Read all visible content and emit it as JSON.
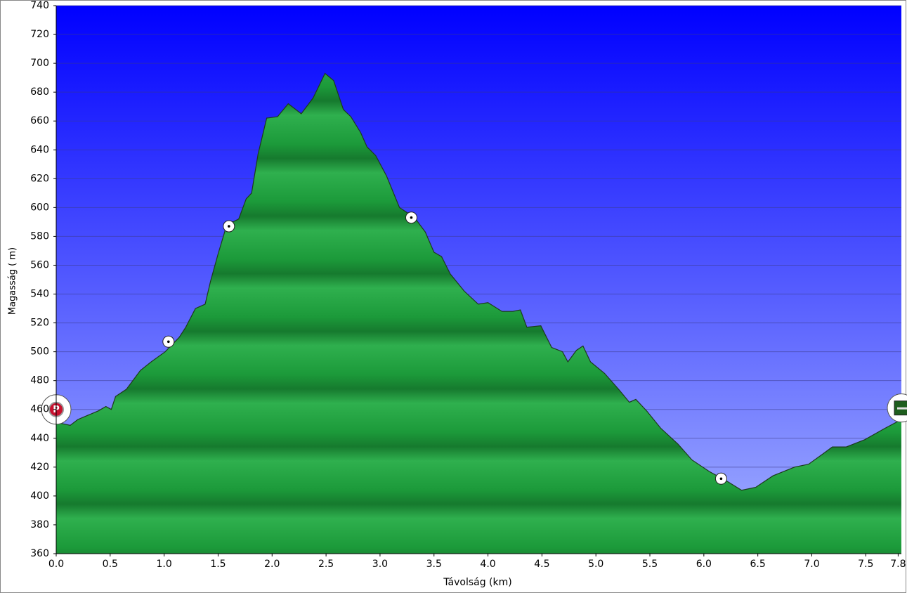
{
  "chart_data": {
    "type": "area",
    "x_label": "Távolság   (km)",
    "y_label": "Magasság ( m)",
    "x": [
      0,
      0.13,
      0.2,
      0.39,
      0.46,
      0.51,
      0.55,
      0.65,
      0.78,
      0.88,
      1.01,
      1.14,
      1.2,
      1.29,
      1.38,
      1.43,
      1.5,
      1.58,
      1.69,
      1.76,
      1.81,
      1.87,
      1.95,
      2.05,
      2.15,
      2.27,
      2.38,
      2.49,
      2.57,
      2.66,
      2.73,
      2.82,
      2.88,
      2.96,
      3.06,
      3.18,
      3.32,
      3.42,
      3.5,
      3.57,
      3.65,
      3.78,
      3.91,
      4.0,
      4.13,
      4.23,
      4.3,
      4.36,
      4.49,
      4.59,
      4.69,
      4.74,
      4.82,
      4.88,
      4.95,
      5.08,
      5.21,
      5.31,
      5.37,
      5.47,
      5.6,
      5.76,
      5.89,
      6.05,
      6.22,
      6.35,
      6.48,
      6.64,
      6.84,
      6.97,
      7.1,
      7.19,
      7.32,
      7.49,
      7.68,
      7.83
    ],
    "values": [
      451,
      449,
      453,
      459,
      462,
      460,
      469,
      474,
      487,
      493,
      500,
      510,
      517,
      530,
      533,
      549,
      568,
      588,
      592,
      606,
      610,
      637,
      662,
      663,
      672,
      665,
      676,
      693,
      688,
      668,
      663,
      652,
      642,
      636,
      622,
      600,
      593,
      583,
      569,
      566,
      554,
      542,
      533,
      534,
      528,
      528,
      529,
      517,
      518,
      503,
      500,
      493,
      501,
      504,
      493,
      485,
      474,
      465,
      467,
      459,
      447,
      436,
      425,
      417,
      410,
      404,
      406,
      414,
      420,
      422,
      429,
      434,
      434,
      439,
      447,
      453
    ],
    "waypoints": {
      "x": [
        1.04,
        1.6,
        3.29,
        6.16
      ],
      "values": [
        507,
        587,
        593,
        412
      ]
    },
    "start": {
      "x": 0,
      "value": 460,
      "label": "P"
    },
    "end": {
      "x": 7.83,
      "value": 461
    },
    "xlim": [
      0,
      7.83
    ],
    "ylim": [
      360,
      740
    ],
    "xticks": [
      {
        "value": 0,
        "label": "0.0"
      },
      0.5,
      {
        "value": 1,
        "label": "1.0"
      },
      1.5,
      {
        "value": 2,
        "label": "2.0"
      },
      2.5,
      {
        "value": 3,
        "label": "3.0"
      },
      3.5,
      {
        "value": 4,
        "label": "4.0"
      },
      4.5,
      {
        "value": 5,
        "label": "5.0"
      },
      5.5,
      {
        "value": 6,
        "label": "6.0"
      },
      6.5,
      {
        "value": 7,
        "label": "7.0"
      },
      7.5,
      7.8
    ],
    "yticks": [
      360,
      380,
      400,
      420,
      440,
      460,
      480,
      500,
      520,
      540,
      560,
      580,
      600,
      620,
      640,
      660,
      680,
      700,
      720,
      740
    ],
    "grid": true,
    "color": "#22a040"
  }
}
